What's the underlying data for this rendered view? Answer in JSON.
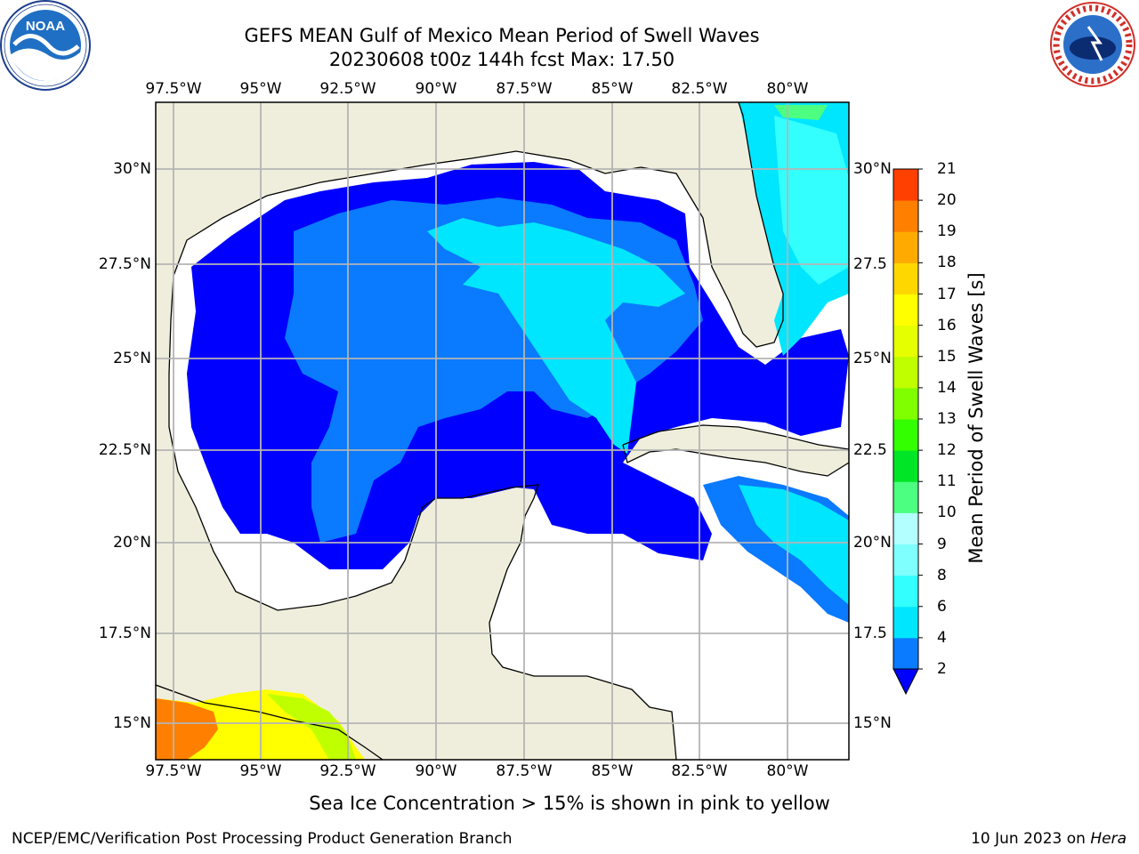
{
  "header": {
    "title": "GEFS MEAN Gulf of Mexico Mean Period of Swell Waves",
    "subtitle": "20230608 t00z 144h fcst   Max: 17.50"
  },
  "logos": {
    "left": {
      "name": "NOAA",
      "ring_text": "NATIONAL OCEANIC AND ATMOSPHERIC ADMINISTRATION · U.S. DEPARTMENT OF COMMERCE"
    },
    "right": {
      "name": "NATIONAL WEATHER SERVICE"
    }
  },
  "map": {
    "lon_labels": [
      "97.5°W",
      "95°W",
      "92.5°W",
      "90°W",
      "87.5°W",
      "85°W",
      "82.5°W",
      "80°W"
    ],
    "lat_labels_left": [
      "30°N",
      "27.5°N",
      "25°N",
      "22.5°N",
      "20°N",
      "17.5°N",
      "15°N"
    ],
    "lat_labels_right": [
      "30°N",
      "27.5",
      "25°N",
      "22.5",
      "20°N",
      "17.5",
      "15°N"
    ],
    "colors": {
      "land": "#efeedc",
      "sea_background": "#ffffff",
      "grid": "#b4b4b4",
      "coast": "#000000"
    }
  },
  "colorbar": {
    "label": "Mean Period of Swell Waves [s]",
    "ticks": [
      "2",
      "4",
      "6",
      "8",
      "9",
      "10",
      "11",
      "12",
      "13",
      "14",
      "15",
      "16",
      "17",
      "18",
      "19",
      "20",
      "21"
    ],
    "extend": "min",
    "colors": [
      "#0a7aff",
      "#00e6ff",
      "#33ffff",
      "#80ffff",
      "#b3ffff",
      "#4dff80",
      "#00e626",
      "#33ff00",
      "#80ff00",
      "#bfff00",
      "#e6ff00",
      "#ffff00",
      "#ffd700",
      "#ffaa00",
      "#ff8000",
      "#ff4000",
      "#ff1a00",
      "#ff0000"
    ],
    "under_color": "#0000ff"
  },
  "note": "Sea Ice Concentration > 15% is shown in pink to yellow",
  "footer": {
    "left": "NCEP/EMC/Verification Post Processing Product Generation Branch",
    "right_date": "10 Jun 2023 on",
    "right_host": "Hera"
  }
}
